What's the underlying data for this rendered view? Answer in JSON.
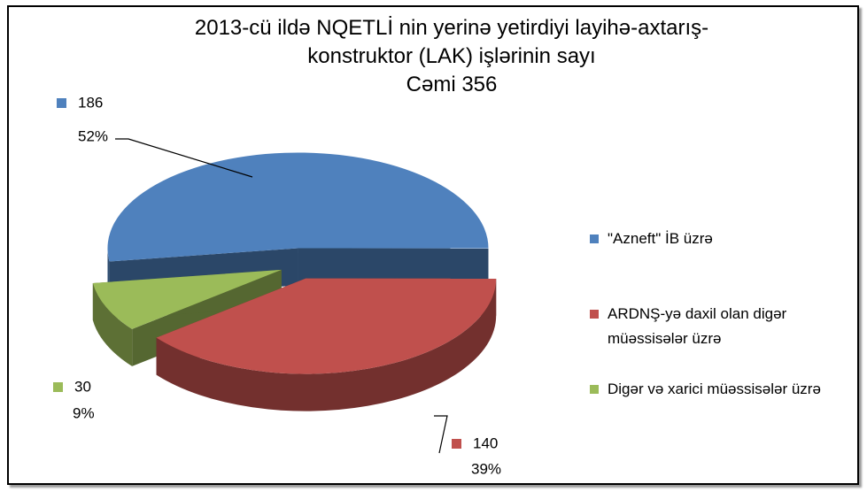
{
  "chart_data": {
    "type": "pie",
    "title_lines": [
      "2013-cü ildə NQETLİ nin yerinə yetirdiyi layihə-axtarış-",
      "konstruktor (LAK) işlərinin sayı",
      "Cəmi 356"
    ],
    "categories": [
      "\"Azneft\" İB üzrə",
      "ARDNŞ-yə daxil olan digər müəssisələr üzrə",
      "Digər və xarici müəssisələr üzrə"
    ],
    "values": [
      186,
      140,
      30
    ],
    "percent_labels": [
      "52%",
      "39%",
      "9%"
    ],
    "colors": [
      "#4f81bd",
      "#c0504d",
      "#9bbb59"
    ],
    "legend": "right"
  }
}
